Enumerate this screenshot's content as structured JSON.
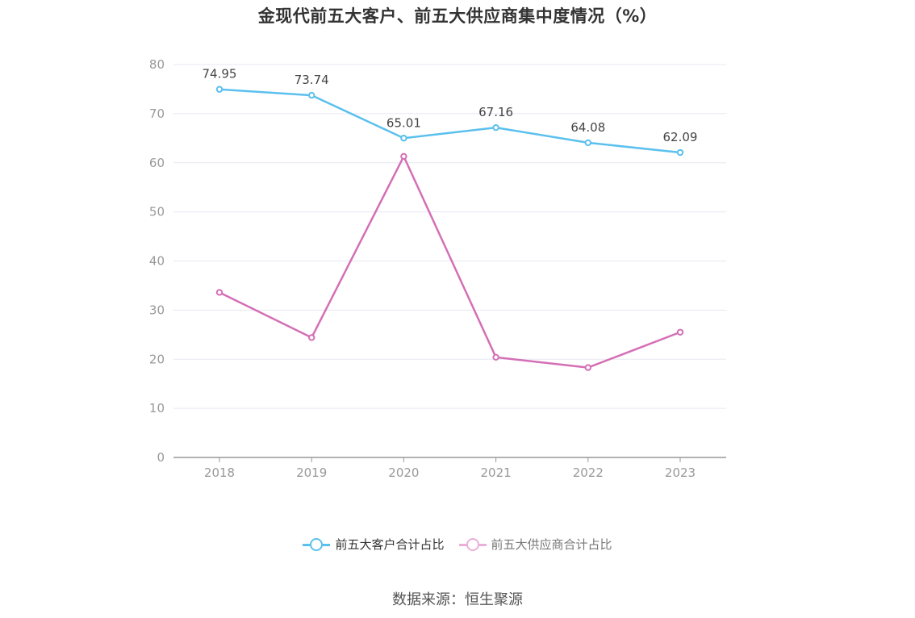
{
  "title": "金现代前五大客户、前五大供应商集中度情况（%）",
  "source": "数据来源：恒生聚源",
  "colors": {
    "series1": "#5bc0ee",
    "series2": "#d46fb6",
    "series2_legend": "#eab0d8",
    "grid": "#e6e8f2",
    "axis": "#999999",
    "tick_label": "#999999",
    "data_label": "#444444"
  },
  "chart_data": {
    "type": "line",
    "x": [
      "2018",
      "2019",
      "2020",
      "2021",
      "2022",
      "2023"
    ],
    "y_ticks": [
      "0",
      "10",
      "20",
      "30",
      "40",
      "50",
      "60",
      "70",
      "80"
    ],
    "ylim": [
      0,
      80
    ],
    "grid": true,
    "legend_position": "bottom-center",
    "series": [
      {
        "name": "前五大客户合计占比",
        "values": [
          74.95,
          73.74,
          65.01,
          67.16,
          64.08,
          62.09
        ],
        "labels": [
          "74.95",
          "73.74",
          "65.01",
          "67.16",
          "64.08",
          "62.09"
        ]
      },
      {
        "name": "前五大供应商合计占比",
        "values": [
          33.6,
          24.4,
          61.3,
          20.4,
          18.3,
          25.5
        ],
        "labels": []
      }
    ]
  }
}
